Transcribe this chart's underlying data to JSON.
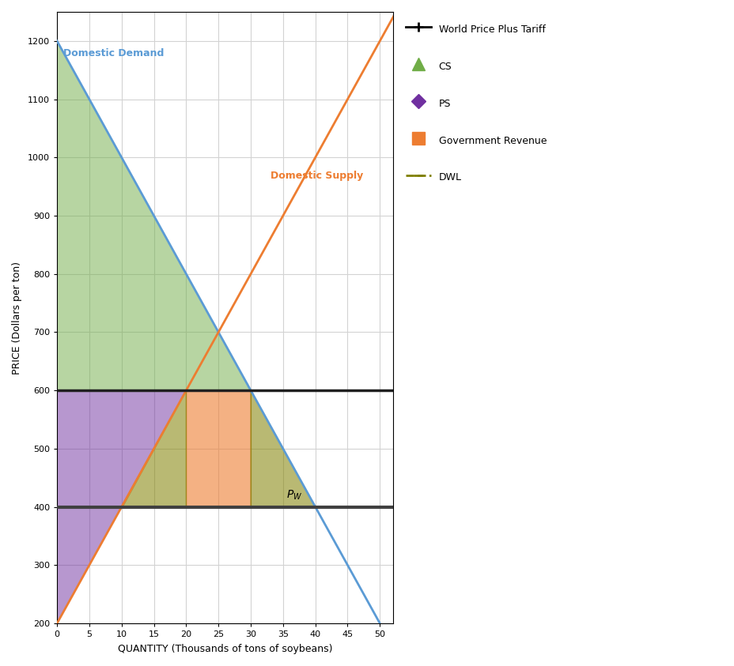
{
  "title": "",
  "xlabel": "QUANTITY (Thousands of tons of soybeans)",
  "ylabel": "PRICE (Dollars per ton)",
  "xlim": [
    0,
    52
  ],
  "ylim": [
    200,
    1250
  ],
  "xticks": [
    0,
    5,
    10,
    15,
    20,
    25,
    30,
    35,
    40,
    45,
    50
  ],
  "yticks": [
    200,
    300,
    400,
    500,
    600,
    700,
    800,
    900,
    1000,
    1100,
    1200
  ],
  "demand_label": "Domestic Demand",
  "supply_label": "Domestic Supply",
  "world_price": 400,
  "tariff": 200,
  "tariff_price": 600,
  "demand_intercept_p": 1200,
  "demand_slope": -20,
  "supply_intercept_p": 200,
  "supply_slope": 20,
  "pw_label": "P_W",
  "demand_color": "#5B9BD5",
  "supply_color": "#ED7D31",
  "world_price_color": "#404040",
  "tariff_line_color": "#202020",
  "cs_color": "#70AD47",
  "cs_alpha": 0.5,
  "ps_color": "#7030A0",
  "ps_alpha": 0.5,
  "gov_color": "#ED7D31",
  "gov_alpha": 0.6,
  "dwl_color": "#808000",
  "dwl_alpha": 0.55,
  "bg_color": "#FFFFFF",
  "grid_color": "#D3D3D3",
  "legend_items": [
    "World Price Plus Tariff",
    "CS",
    "PS",
    "Government Revenue",
    "DWL"
  ]
}
